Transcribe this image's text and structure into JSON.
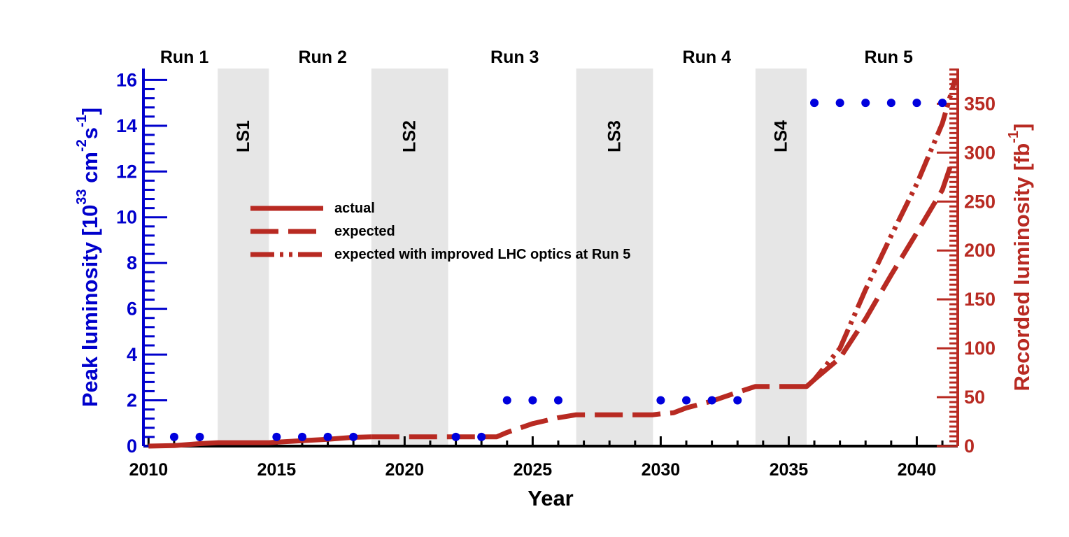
{
  "chart_data": {
    "type": "line",
    "xlabel": "Year",
    "ylabel_left": "Peak luminosity [10",
    "ylabel_left_exp": "33",
    "ylabel_left_unit": " cm",
    "ylabel_left_exp2": "-2",
    "ylabel_left_unit2": "s",
    "ylabel_left_exp3": "-1",
    "ylabel_left_end": "]",
    "ylabel_right": "Recorded luminosity [fb",
    "ylabel_right_exp": "-1",
    "ylabel_right_end": "]",
    "xlim": [
      2009.8,
      2041.6
    ],
    "ylim_left": [
      0,
      16.5
    ],
    "ylim_right": [
      0,
      386
    ],
    "x_ticks": [
      "2010",
      "2015",
      "2020",
      "2025",
      "2030",
      "2035",
      "2040"
    ],
    "y_left_ticks": [
      "0",
      "2",
      "4",
      "6",
      "8",
      "10",
      "12",
      "14",
      "16"
    ],
    "y_right_ticks": [
      "0",
      "50",
      "100",
      "150",
      "200",
      "250",
      "300",
      "350"
    ],
    "runs": [
      {
        "label": "Run 1",
        "x": 2011.4
      },
      {
        "label": "Run 2",
        "x": 2016.8
      },
      {
        "label": "Run 3",
        "x": 2024.3
      },
      {
        "label": "Run 4",
        "x": 2031.8
      },
      {
        "label": "Run 5",
        "x": 2038.9
      }
    ],
    "shutdowns": [
      {
        "label": "LS1",
        "start": 2012.7,
        "end": 2014.7
      },
      {
        "label": "LS2",
        "start": 2018.7,
        "end": 2021.7
      },
      {
        "label": "LS3",
        "start": 2026.7,
        "end": 2029.7
      },
      {
        "label": "LS4",
        "start": 2033.7,
        "end": 2035.7
      }
    ],
    "peak_luminosity": {
      "name": "Peak luminosity",
      "x": [
        2011,
        2012,
        2015,
        2016,
        2017,
        2018,
        2022,
        2023,
        2024,
        2025,
        2026,
        2030,
        2031,
        2032,
        2033,
        2036,
        2037,
        2038,
        2039,
        2040,
        2041
      ],
      "y": [
        0.4,
        0.4,
        0.4,
        0.4,
        0.4,
        0.4,
        0.4,
        0.4,
        2,
        2,
        2,
        2,
        2,
        2,
        2,
        15,
        15,
        15,
        15,
        15,
        15
      ]
    },
    "series": [
      {
        "name": "actual",
        "style": "solid",
        "x": [
          2010,
          2011,
          2012,
          2012.7,
          2014.7,
          2015,
          2016,
          2017,
          2018,
          2018.7
        ],
        "y": [
          0,
          0.5,
          2.5,
          3.5,
          3.5,
          4,
          5.5,
          7,
          9,
          9.5
        ]
      },
      {
        "name": "expected",
        "style": "dashed",
        "x": [
          2018.7,
          2021.7,
          2022,
          2023,
          2023.6,
          2024,
          2025,
          2026,
          2026.7,
          2029.7,
          2030,
          2030.5,
          2031,
          2032,
          2033,
          2033.7,
          2035.7,
          2036,
          2037,
          2038,
          2039,
          2040,
          2041,
          2041.3
        ],
        "y": [
          9.5,
          9.5,
          9.5,
          9.5,
          9.5,
          14,
          23,
          29,
          32,
          32,
          33,
          34,
          39,
          46,
          55,
          61,
          61,
          68,
          90,
          130,
          175,
          218,
          262,
          285
        ]
      },
      {
        "name": "expected with improved LHC optics at Run 5",
        "style": "dashdot",
        "x": [
          2035.7,
          2036,
          2037,
          2038,
          2039,
          2040,
          2041,
          2041.5
        ],
        "y": [
          61,
          68,
          100,
          160,
          215,
          268,
          330,
          375
        ]
      }
    ],
    "legend": {
      "position": "middle-left",
      "entries": [
        {
          "label": "actual",
          "style": "solid"
        },
        {
          "label": "expected",
          "style": "dashed"
        },
        {
          "label": "expected with improved LHC optics at Run 5",
          "style": "dashdot"
        }
      ]
    },
    "colors": {
      "left_axis": "#0000cc",
      "right_axis": "#b82a22",
      "marker": "#0000dd",
      "shutdown_fill": "#e6e6e6",
      "text": "#000000"
    }
  }
}
